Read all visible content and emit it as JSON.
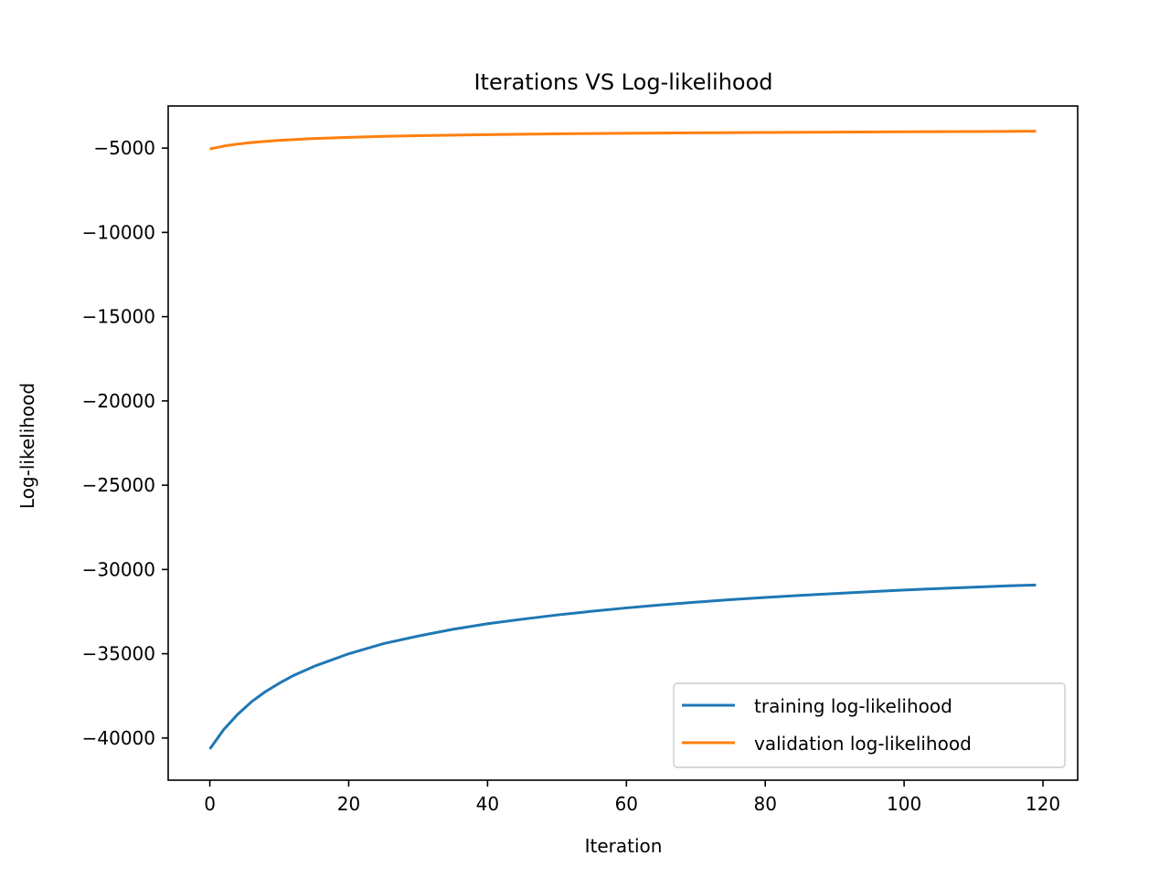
{
  "chart_data": {
    "type": "line",
    "title": "Iterations VS Log-likelihood",
    "xlabel": "Iteration",
    "ylabel": "Log-likelihood",
    "xlim": [
      -6,
      125
    ],
    "ylim": [
      -42500,
      -2500
    ],
    "xticks": [
      0,
      20,
      40,
      60,
      80,
      100,
      120
    ],
    "yticks": [
      -40000,
      -35000,
      -30000,
      -25000,
      -20000,
      -15000,
      -10000,
      -5000
    ],
    "legend_position": "lower-right",
    "grid": false,
    "series": [
      {
        "name": "training log-likelihood",
        "color": "#1f77b4",
        "x": [
          0,
          2,
          4,
          6,
          8,
          10,
          12,
          15,
          20,
          25,
          30,
          35,
          40,
          45,
          50,
          55,
          60,
          65,
          70,
          75,
          80,
          85,
          90,
          95,
          100,
          105,
          110,
          115,
          119
        ],
        "y": [
          -40650,
          -39500,
          -38600,
          -37850,
          -37250,
          -36750,
          -36300,
          -35750,
          -35000,
          -34400,
          -33950,
          -33550,
          -33220,
          -32950,
          -32700,
          -32480,
          -32280,
          -32100,
          -31940,
          -31790,
          -31660,
          -31540,
          -31430,
          -31320,
          -31220,
          -31130,
          -31050,
          -30970,
          -30920
        ]
      },
      {
        "name": "validation log-likelihood",
        "color": "#ff7f0e",
        "x": [
          0,
          2,
          4,
          6,
          8,
          10,
          15,
          20,
          25,
          30,
          40,
          50,
          60,
          70,
          80,
          90,
          100,
          110,
          119
        ],
        "y": [
          -5050,
          -4880,
          -4760,
          -4670,
          -4600,
          -4540,
          -4430,
          -4360,
          -4300,
          -4260,
          -4200,
          -4150,
          -4120,
          -4090,
          -4070,
          -4050,
          -4030,
          -4015,
          -4000
        ]
      }
    ]
  }
}
